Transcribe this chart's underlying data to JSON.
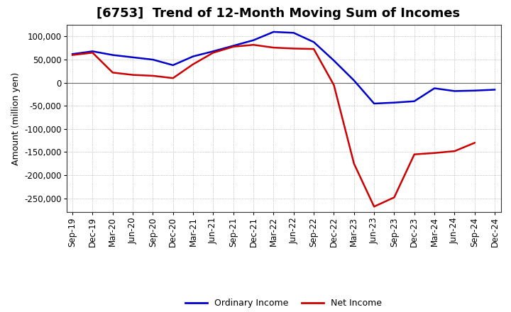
{
  "title": "[6753]  Trend of 12-Month Moving Sum of Incomes",
  "ylabel": "Amount (million yen)",
  "x_labels": [
    "Sep-19",
    "Dec-19",
    "Mar-20",
    "Jun-20",
    "Sep-20",
    "Dec-20",
    "Mar-21",
    "Jun-21",
    "Sep-21",
    "Dec-21",
    "Mar-22",
    "Jun-22",
    "Sep-22",
    "Dec-22",
    "Mar-23",
    "Jun-23",
    "Sep-23",
    "Dec-23",
    "Mar-24",
    "Jun-24",
    "Sep-24",
    "Dec-24"
  ],
  "ordinary_income": [
    62000,
    68000,
    60000,
    55000,
    50000,
    38000,
    57000,
    68000,
    80000,
    92000,
    110000,
    108000,
    88000,
    48000,
    5000,
    -45000,
    -43000,
    -40000,
    -12000,
    -18000,
    -17000,
    -15000
  ],
  "net_income": [
    60000,
    65000,
    22000,
    17000,
    15000,
    10000,
    40000,
    65000,
    78000,
    82000,
    76000,
    74000,
    73000,
    -5000,
    -175000,
    -268000,
    -248000,
    -155000,
    -152000,
    -148000,
    -130000,
    null
  ],
  "ordinary_income_color": "#0000cc",
  "net_income_color": "#cc0000",
  "background_color": "#FFFFFF",
  "plot_bg_color": "#FFFFFF",
  "grid_color": "#999999",
  "ylim": [
    -280000,
    125000
  ],
  "yticks": [
    100000,
    50000,
    0,
    -50000,
    -100000,
    -150000,
    -200000,
    -250000
  ],
  "legend_labels": [
    "Ordinary Income",
    "Net Income"
  ],
  "line_width": 1.8,
  "title_fontsize": 13,
  "axis_fontsize": 9,
  "tick_fontsize": 8.5
}
